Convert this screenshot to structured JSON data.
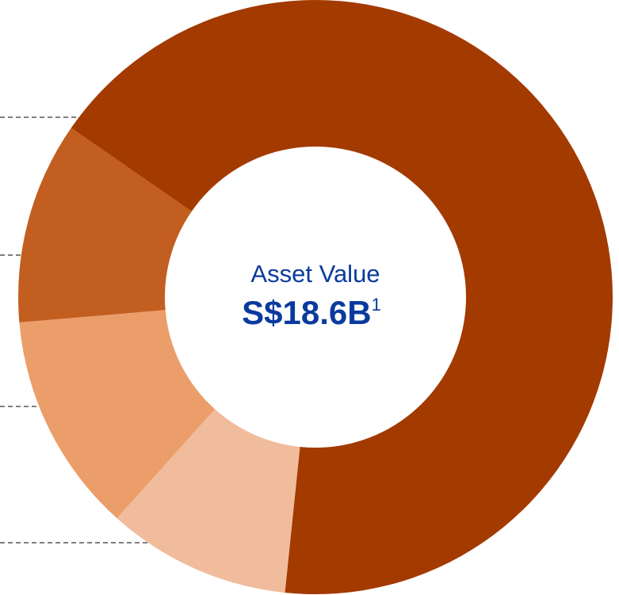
{
  "chart_data": {
    "type": "donut",
    "center_label": "Asset Value",
    "center_value": "S$18.6B",
    "center_footnote": "1",
    "values": [
      67,
      10,
      12,
      11
    ],
    "colors": [
      "#a33a00",
      "#f0bc9b",
      "#eb9e6a",
      "#c25e1f"
    ]
  }
}
